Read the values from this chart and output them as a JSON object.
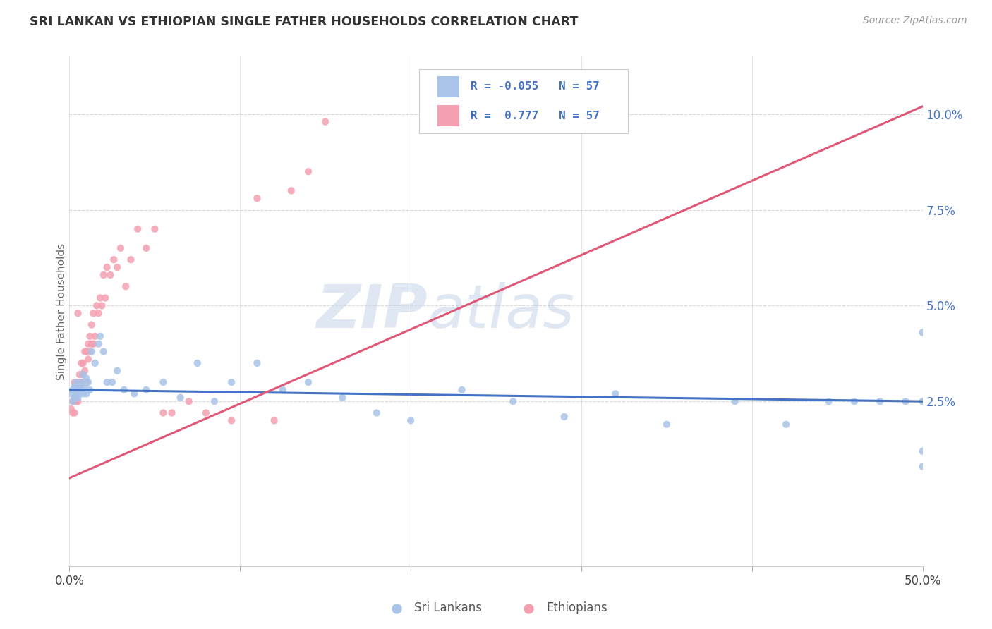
{
  "title": "SRI LANKAN VS ETHIOPIAN SINGLE FATHER HOUSEHOLDS CORRELATION CHART",
  "source": "Source: ZipAtlas.com",
  "ylabel": "Single Father Households",
  "xlim": [
    0.0,
    0.5
  ],
  "ylim": [
    -0.018,
    0.115
  ],
  "xtick_pos": [
    0.0,
    0.1,
    0.2,
    0.3,
    0.4,
    0.5
  ],
  "xticklabels": [
    "0.0%",
    "",
    "",
    "",
    "",
    "50.0%"
  ],
  "ytick_pos": [
    0.025,
    0.05,
    0.075,
    0.1
  ],
  "ytick_labels": [
    "2.5%",
    "5.0%",
    "7.5%",
    "10.0%"
  ],
  "sri_lankan_color": "#a8c4e8",
  "ethiopian_color": "#f4a0b0",
  "sri_lankan_line_color": "#4472c4",
  "ethiopian_line_color": "#e05878",
  "watermark_color": "#d0dff0",
  "background_color": "#ffffff",
  "grid_color": "#d8d8d8",
  "legend_text_color": "#4472c4",
  "ylabel_color": "#666666",
  "tick_label_color": "#4472c4",
  "source_color": "#999999",
  "title_color": "#333333",
  "sl_x": [
    0.001,
    0.002,
    0.002,
    0.003,
    0.003,
    0.004,
    0.004,
    0.005,
    0.005,
    0.006,
    0.006,
    0.007,
    0.007,
    0.008,
    0.008,
    0.009,
    0.01,
    0.01,
    0.011,
    0.012,
    0.013,
    0.015,
    0.017,
    0.018,
    0.02,
    0.022,
    0.025,
    0.028,
    0.032,
    0.038,
    0.045,
    0.055,
    0.065,
    0.075,
    0.085,
    0.095,
    0.11,
    0.125,
    0.14,
    0.16,
    0.18,
    0.2,
    0.23,
    0.26,
    0.29,
    0.32,
    0.35,
    0.39,
    0.42,
    0.445,
    0.46,
    0.475,
    0.49,
    0.5,
    0.5,
    0.5,
    0.5
  ],
  "sl_y": [
    0.027,
    0.025,
    0.028,
    0.026,
    0.029,
    0.027,
    0.03,
    0.028,
    0.026,
    0.029,
    0.027,
    0.03,
    0.028,
    0.027,
    0.032,
    0.029,
    0.031,
    0.027,
    0.03,
    0.028,
    0.038,
    0.035,
    0.04,
    0.042,
    0.038,
    0.03,
    0.03,
    0.033,
    0.028,
    0.027,
    0.028,
    0.03,
    0.026,
    0.035,
    0.025,
    0.03,
    0.035,
    0.028,
    0.03,
    0.026,
    0.022,
    0.02,
    0.028,
    0.025,
    0.021,
    0.027,
    0.019,
    0.025,
    0.019,
    0.025,
    0.025,
    0.025,
    0.025,
    0.025,
    0.008,
    0.012,
    0.043
  ],
  "eth_x": [
    0.001,
    0.002,
    0.002,
    0.003,
    0.003,
    0.003,
    0.004,
    0.004,
    0.005,
    0.005,
    0.005,
    0.006,
    0.006,
    0.007,
    0.007,
    0.008,
    0.008,
    0.008,
    0.009,
    0.009,
    0.01,
    0.01,
    0.011,
    0.011,
    0.012,
    0.012,
    0.013,
    0.013,
    0.014,
    0.014,
    0.015,
    0.016,
    0.017,
    0.018,
    0.019,
    0.02,
    0.021,
    0.022,
    0.024,
    0.026,
    0.028,
    0.03,
    0.033,
    0.036,
    0.04,
    0.045,
    0.05,
    0.055,
    0.06,
    0.07,
    0.08,
    0.095,
    0.11,
    0.12,
    0.13,
    0.14,
    0.15
  ],
  "eth_y": [
    0.023,
    0.022,
    0.025,
    0.022,
    0.026,
    0.03,
    0.025,
    0.028,
    0.048,
    0.025,
    0.03,
    0.032,
    0.028,
    0.035,
    0.03,
    0.032,
    0.03,
    0.035,
    0.038,
    0.033,
    0.03,
    0.038,
    0.036,
    0.04,
    0.038,
    0.042,
    0.04,
    0.045,
    0.04,
    0.048,
    0.042,
    0.05,
    0.048,
    0.052,
    0.05,
    0.058,
    0.052,
    0.06,
    0.058,
    0.062,
    0.06,
    0.065,
    0.055,
    0.062,
    0.07,
    0.065,
    0.07,
    0.022,
    0.022,
    0.025,
    0.022,
    0.02,
    0.078,
    0.02,
    0.08,
    0.085,
    0.098
  ],
  "eth_line_x": [
    0.0,
    0.5
  ],
  "eth_line_y": [
    0.005,
    0.102
  ],
  "sl_line_x": [
    0.0,
    0.5
  ],
  "sl_line_y": [
    0.028,
    0.025
  ]
}
